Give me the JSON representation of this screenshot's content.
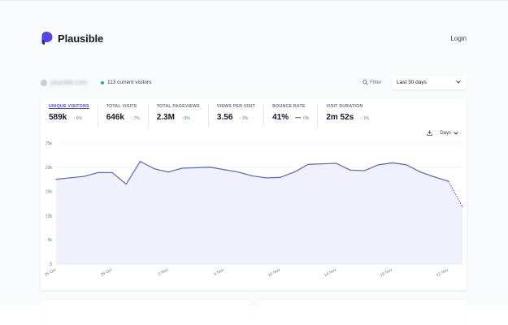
{
  "app": {
    "brand": "Plausible",
    "login_label": "Login"
  },
  "toolbar": {
    "site_name": "yoursite.com",
    "current_visitors": "113 current visitors",
    "filter_label": "Filter",
    "period": "Last 30 days"
  },
  "metrics": [
    {
      "label": "UNIQUE VISITORS",
      "value": "589k",
      "change": "6%",
      "dir": "up"
    },
    {
      "label": "TOTAL VISITS",
      "value": "646k",
      "change": "7%",
      "dir": "up"
    },
    {
      "label": "TOTAL PAGEVIEWS",
      "value": "2.3M",
      "change": "9%",
      "dir": "up"
    },
    {
      "label": "VIEWS PER VISIT",
      "value": "3.56",
      "change": "3%",
      "dir": "up"
    },
    {
      "label": "BOUNCE RATE",
      "value": "41%",
      "change": "0%",
      "dir": "flat"
    },
    {
      "label": "VISIT DURATION",
      "value": "2m 52s",
      "change": "1%",
      "dir": "up"
    }
  ],
  "interval": {
    "label": "Days"
  },
  "colors": {
    "line": "#6070c0",
    "fill": "#eceefa",
    "accent": "#4f46e5",
    "positive": "#10b981"
  },
  "icons": {
    "logo": "plausible-logo",
    "filter": "search-icon",
    "download": "download-icon",
    "chevron": "chevron-down-icon"
  },
  "chart_data": {
    "type": "line",
    "y_ticks": [
      "0",
      "5k",
      "10k",
      "15k",
      "20k",
      "25k"
    ],
    "ylim": [
      0,
      25000
    ],
    "x_tick_labels": [
      "25 Oct",
      "29 Oct",
      "2 Nov",
      "6 Nov",
      "10 Nov",
      "14 Nov",
      "18 Nov",
      "22 Nov"
    ],
    "x_tick_days": [
      0,
      4,
      8,
      12,
      16,
      20,
      24,
      28
    ],
    "series": [
      {
        "values": [
          17500,
          17800,
          18100,
          18900,
          18900,
          16500,
          21200,
          19700,
          19000,
          19800,
          19900,
          20000,
          19500,
          19000,
          18200,
          17800,
          17900,
          19000,
          20600,
          20700,
          20800,
          19400,
          19300,
          20500,
          20900,
          20500,
          19000,
          18000,
          17100,
          11800
        ],
        "dashed_last_segment": true
      }
    ],
    "grid": true
  }
}
